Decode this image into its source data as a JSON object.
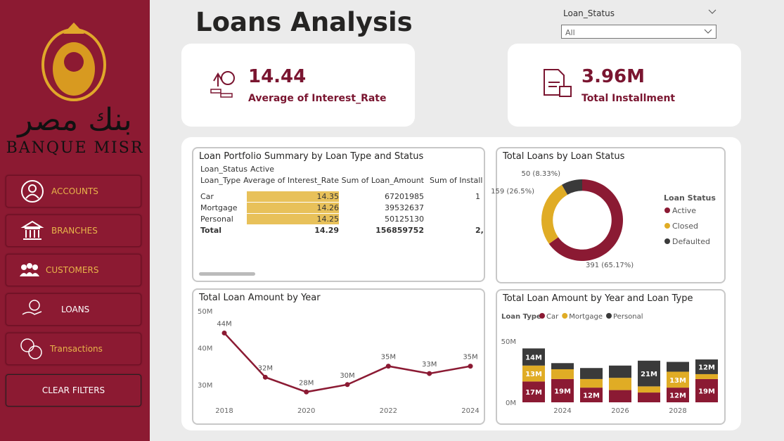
{
  "sidebar": {
    "brand_arabic": "بنك مصر",
    "brand": "BANQUE MISR",
    "nav": [
      "ACCOUNTS",
      "BRANCHES",
      "CUSTOMERS",
      "LOANS",
      "Transactions"
    ],
    "clear": "CLEAR FILTERS"
  },
  "header": {
    "title": "Loans Analysis"
  },
  "filter": {
    "label": "Loan_Status",
    "value": "All"
  },
  "kpis": [
    {
      "value": "14.44",
      "label": "Average of Interest_Rate"
    },
    {
      "value": "3.96M",
      "label": "Total Installment"
    }
  ],
  "table": {
    "title": "Loan Portfolio Summary by Loan Type and Status",
    "status_label": "Loan_Status",
    "status": "Active",
    "columns": [
      "Loan_Type",
      "Average of Interest_Rate",
      "Sum of Loan_Amount",
      "Sum of Install"
    ],
    "rows": [
      [
        "Car",
        "14.35",
        "67201985",
        "1"
      ],
      [
        "Mortgage",
        "14.26",
        "39532637"
      ],
      [
        "Personal",
        "14.25",
        "50125130"
      ],
      [
        "Total",
        "14.29",
        "156859752",
        "2,"
      ]
    ]
  },
  "chart_data": [
    {
      "type": "pie",
      "title": "Total Loans by Loan Status",
      "legend_title": "Loan Status",
      "categories": [
        "Active",
        "Closed",
        "Defaulted"
      ],
      "values": [
        391,
        159,
        50
      ],
      "value_labels": [
        "391 (65.17%)",
        "159 (26.5%)",
        "50 (8.33%)"
      ],
      "colors": [
        "#8b1a33",
        "#e0ac25",
        "#3a3a3a"
      ],
      "inner_radius_ratio": 0.72
    },
    {
      "type": "line",
      "title": "Total Loan Amount by Year",
      "x": [
        2018,
        2019,
        2020,
        2021,
        2022,
        2023,
        2024
      ],
      "values": [
        44,
        32,
        28,
        30,
        35,
        33,
        35
      ],
      "value_labels": [
        "44M",
        "32M",
        "28M",
        "30M",
        "35M",
        "33M",
        "35M"
      ],
      "color": "#8b1a33",
      "xlim": [
        2018,
        2024
      ],
      "xticks": [
        2018,
        2020,
        2022,
        2024
      ],
      "ylim": [
        25,
        50
      ],
      "yticks": [
        {
          "value": 30,
          "label": "30M"
        },
        {
          "value": 40,
          "label": "40M"
        },
        {
          "value": 50,
          "label": "50M"
        }
      ],
      "grid": false
    },
    {
      "type": "bar",
      "stacked": true,
      "title": "Total Loan Amount by Year and Loan Type",
      "legend_title": "Loan Type",
      "categories": [
        null,
        "2024",
        null,
        "2026",
        null,
        "2028",
        null
      ],
      "series": [
        {
          "name": "Car",
          "color": "#8b1a33",
          "values": [
            17,
            19,
            12,
            10,
            8,
            12,
            19
          ],
          "value_labels": [
            "17M",
            "19M",
            "12M",
            null,
            null,
            "12M",
            "19M"
          ]
        },
        {
          "name": "Mortgage",
          "color": "#e0ac25",
          "values": [
            13,
            8,
            7,
            10,
            5,
            13,
            4
          ],
          "value_labels": [
            "13M",
            null,
            null,
            null,
            null,
            "13M",
            null
          ]
        },
        {
          "name": "Personal",
          "color": "#3a3a3a",
          "values": [
            14,
            5,
            9,
            10,
            21,
            8,
            12
          ],
          "value_labels": [
            "14M",
            null,
            null,
            null,
            "21M",
            null,
            "12M"
          ]
        }
      ],
      "ylim": [
        0,
        58
      ],
      "yticks": [
        {
          "value": 0,
          "label": "0M"
        },
        {
          "value": 50,
          "label": "50M"
        }
      ],
      "grid": false
    }
  ]
}
